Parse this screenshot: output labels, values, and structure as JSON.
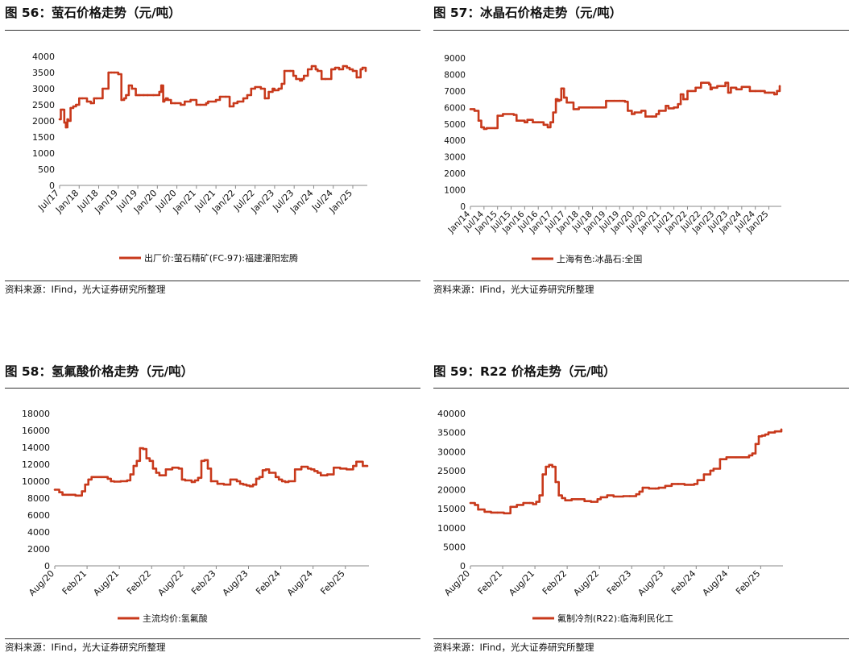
{
  "theme": {
    "line_color": "#c8391b",
    "axis_color": "#888888",
    "text_color": "#111111"
  },
  "chart_data": [
    {
      "type": "line",
      "title": "图 56：萤石价格走势（元/吨）",
      "source": "资料来源：IFind，光大证券研究所整理",
      "series_name": "出厂价:萤石精矿(FC-97):福建灌阳宏腾",
      "ylim": [
        0,
        4000
      ],
      "yticks": [
        0,
        500,
        1000,
        1500,
        2000,
        2500,
        3000,
        3500,
        4000
      ],
      "xrange": [
        2017.5,
        2025.33
      ],
      "xtick_labels": [
        "Jul/17",
        "Jan/18",
        "Jul/18",
        "Jan/19",
        "Jul/19",
        "Jan/20",
        "Jul/20",
        "Jan/21",
        "Jul/21",
        "Jan/22",
        "Jul/22",
        "Jan/23",
        "Jul/23",
        "Jan/24",
        "Jul/24",
        "Jan/25"
      ],
      "xtick_values": [
        2017.5,
        2018.0,
        2018.5,
        2019.0,
        2019.5,
        2020.0,
        2020.5,
        2021.0,
        2021.5,
        2022.0,
        2022.5,
        2023.0,
        2023.5,
        2024.0,
        2024.5,
        2025.0
      ],
      "x": [
        2017.5,
        2017.53,
        2017.58,
        2017.62,
        2017.66,
        2017.7,
        2017.72,
        2017.78,
        2017.85,
        2017.92,
        2018.0,
        2018.08,
        2018.2,
        2018.3,
        2018.38,
        2018.45,
        2018.6,
        2018.75,
        2018.82,
        2018.9,
        2019.0,
        2019.08,
        2019.15,
        2019.2,
        2019.27,
        2019.35,
        2019.45,
        2019.5,
        2019.55,
        2019.65,
        2019.75,
        2019.9,
        2020.05,
        2020.1,
        2020.15,
        2020.18,
        2020.22,
        2020.27,
        2020.35,
        2020.45,
        2020.6,
        2020.7,
        2020.85,
        2021.0,
        2021.1,
        2021.25,
        2021.3,
        2021.5,
        2021.6,
        2021.75,
        2021.85,
        2021.95,
        2022.05,
        2022.1,
        2022.2,
        2022.25,
        2022.3,
        2022.4,
        2022.5,
        2022.65,
        2022.75,
        2022.85,
        2022.95,
        2023.0,
        2023.1,
        2023.15,
        2023.18,
        2023.25,
        2023.4,
        2023.48,
        2023.55,
        2023.65,
        2023.7,
        2023.75,
        2023.85,
        2023.95,
        2024.05,
        2024.1,
        2024.2,
        2024.3,
        2024.45,
        2024.5,
        2024.55,
        2024.65,
        2024.75,
        2024.85,
        2024.92,
        2025.0,
        2025.1,
        2025.2,
        2025.25,
        2025.33
      ],
      "values": [
        2050,
        2350,
        2350,
        1950,
        1800,
        2050,
        2000,
        2400,
        2450,
        2500,
        2700,
        2700,
        2600,
        2550,
        2700,
        2700,
        3000,
        3500,
        3500,
        3500,
        3450,
        2650,
        2700,
        2800,
        3100,
        3000,
        2800,
        2800,
        2800,
        2800,
        2800,
        2800,
        2900,
        3100,
        2600,
        2650,
        2700,
        2650,
        2550,
        2550,
        2500,
        2600,
        2650,
        2500,
        2500,
        2550,
        2600,
        2650,
        2750,
        2750,
        2450,
        2550,
        2600,
        2600,
        2700,
        2700,
        2800,
        3000,
        3050,
        3000,
        2700,
        2900,
        3000,
        2950,
        3000,
        3000,
        3150,
        3550,
        3550,
        3400,
        3300,
        3250,
        3300,
        3400,
        3600,
        3700,
        3600,
        3550,
        3300,
        3300,
        3600,
        3600,
        3650,
        3600,
        3700,
        3650,
        3600,
        3550,
        3350,
        3600,
        3650,
        3550
      ],
      "axis_rule_top": true
    },
    {
      "type": "line",
      "title": "图 57：冰晶石价格走势（元/吨）",
      "source": "资料来源：IFind，光大证券研究所整理",
      "series_name": "上海有色:冰晶石:全国",
      "ylim": [
        0,
        9000
      ],
      "yticks": [
        0,
        1000,
        2000,
        3000,
        4000,
        5000,
        6000,
        7000,
        8000,
        9000
      ],
      "xrange": [
        2014.0,
        2025.4
      ],
      "xtick_labels": [
        "Jan/14",
        "Jul/14",
        "Jan/15",
        "Jul/15",
        "Jan/16",
        "Jul/16",
        "Jan/17",
        "Jul/17",
        "Jan/18",
        "Jul/18",
        "Jan/19",
        "Jul/19",
        "Jan/20",
        "Jul/20",
        "Jan/21",
        "Jul/21",
        "Jan/22",
        "Jul/22",
        "Jan/23",
        "Jul/23",
        "Jan/24",
        "Jul/24",
        "Jan/25"
      ],
      "xtick_values": [
        2014.0,
        2014.5,
        2015.0,
        2015.5,
        2016.0,
        2016.5,
        2017.0,
        2017.5,
        2018.0,
        2018.5,
        2019.0,
        2019.5,
        2020.0,
        2020.5,
        2021.0,
        2021.5,
        2022.0,
        2022.5,
        2023.0,
        2023.5,
        2024.0,
        2024.5,
        2025.0
      ],
      "x": [
        2014.0,
        2014.15,
        2014.3,
        2014.4,
        2014.5,
        2014.6,
        2014.9,
        2015.0,
        2015.2,
        2015.6,
        2015.7,
        2016.0,
        2016.1,
        2016.3,
        2016.5,
        2016.7,
        2016.85,
        2016.95,
        2017.05,
        2017.15,
        2017.22,
        2017.28,
        2017.35,
        2017.45,
        2017.55,
        2017.8,
        2018.0,
        2018.5,
        2018.9,
        2019.0,
        2019.3,
        2019.5,
        2019.6,
        2019.7,
        2019.8,
        2019.95,
        2020.05,
        2020.3,
        2020.45,
        2020.7,
        2020.85,
        2020.95,
        2021.2,
        2021.3,
        2021.5,
        2021.65,
        2021.75,
        2021.85,
        2022.0,
        2022.3,
        2022.5,
        2022.6,
        2022.8,
        2022.85,
        2022.9,
        2023.1,
        2023.4,
        2023.5,
        2023.6,
        2023.8,
        2024.0,
        2024.3,
        2024.5,
        2024.7,
        2024.85,
        2025.0,
        2025.2,
        2025.3,
        2025.4
      ],
      "values": [
        5900,
        5800,
        5200,
        4800,
        4700,
        4750,
        4750,
        5500,
        5600,
        5550,
        5200,
        5100,
        5250,
        5100,
        5100,
        4950,
        4800,
        5100,
        5700,
        6500,
        6400,
        6450,
        7150,
        6600,
        6300,
        5900,
        6000,
        6000,
        6000,
        6400,
        6400,
        6400,
        6400,
        6350,
        5800,
        5600,
        5700,
        5800,
        5450,
        5450,
        5600,
        5800,
        6100,
        5950,
        6000,
        6200,
        6800,
        6500,
        7000,
        7200,
        7500,
        7500,
        7400,
        7100,
        7200,
        7300,
        7500,
        6900,
        7200,
        7100,
        7250,
        7000,
        7000,
        7000,
        6900,
        6900,
        6800,
        7000,
        7300
      ],
      "axis_rule_top": false
    },
    {
      "type": "line",
      "title": "图 58：氢氟酸价格走势（元/吨）",
      "source": "资料来源：IFind，光大证券研究所整理",
      "series_name": "主流均价:氢氟酸",
      "ylim": [
        0,
        18000
      ],
      "yticks": [
        0,
        2000,
        4000,
        6000,
        8000,
        10000,
        12000,
        14000,
        16000,
        18000
      ],
      "xrange": [
        2020.58,
        2025.42
      ],
      "xtick_labels": [
        "Aug/20",
        "Feb/21",
        "Aug/21",
        "Feb/22",
        "Aug/22",
        "Feb/23",
        "Aug/23",
        "Feb/24",
        "Aug/24",
        "Feb/25"
      ],
      "xtick_values": [
        2020.58,
        2021.08,
        2021.58,
        2022.08,
        2022.58,
        2023.08,
        2023.58,
        2024.08,
        2024.58,
        2025.08
      ],
      "x": [
        2020.58,
        2020.65,
        2020.7,
        2020.8,
        2020.9,
        2020.95,
        2021.0,
        2021.05,
        2021.1,
        2021.15,
        2021.2,
        2021.3,
        2021.4,
        2021.45,
        2021.5,
        2021.6,
        2021.7,
        2021.75,
        2021.8,
        2021.85,
        2021.9,
        2021.95,
        2022.0,
        2022.05,
        2022.1,
        2022.15,
        2022.2,
        2022.3,
        2022.4,
        2022.45,
        2022.5,
        2022.55,
        2022.6,
        2022.7,
        2022.75,
        2022.8,
        2022.85,
        2022.9,
        2022.95,
        2023.0,
        2023.1,
        2023.2,
        2023.3,
        2023.4,
        2023.45,
        2023.5,
        2023.55,
        2023.6,
        2023.65,
        2023.7,
        2023.75,
        2023.8,
        2023.85,
        2023.9,
        2024.0,
        2024.05,
        2024.1,
        2024.15,
        2024.2,
        2024.3,
        2024.4,
        2024.5,
        2024.55,
        2024.6,
        2024.65,
        2024.7,
        2024.8,
        2024.9,
        2025.0,
        2025.1,
        2025.15,
        2025.2,
        2025.25,
        2025.3,
        2025.35,
        2025.42
      ],
      "values": [
        9000,
        8700,
        8400,
        8400,
        8300,
        8300,
        8800,
        9600,
        10200,
        10500,
        10500,
        10500,
        10300,
        10000,
        9950,
        10000,
        10100,
        10800,
        11800,
        12400,
        13900,
        13800,
        12700,
        12400,
        11500,
        11000,
        10700,
        11400,
        11600,
        11600,
        11500,
        10200,
        10100,
        9900,
        10100,
        10400,
        12400,
        12500,
        11500,
        10000,
        9700,
        9600,
        10200,
        10000,
        9700,
        9600,
        9500,
        9400,
        9600,
        10300,
        10500,
        11300,
        11400,
        11000,
        10500,
        10200,
        10000,
        9900,
        10000,
        11400,
        11700,
        11500,
        11400,
        11200,
        11000,
        10700,
        10800,
        11600,
        11500,
        11400,
        11400,
        11800,
        12300,
        12300,
        11800,
        11800
      ],
      "axis_rule_top": false
    },
    {
      "type": "line",
      "title": "图 59：R22 价格走势（元/吨）",
      "source": "资料来源：IFind，光大证券研究所整理",
      "series_name": "氟制冷剂(R22):临海利民化工",
      "ylim": [
        0,
        40000
      ],
      "yticks": [
        0,
        5000,
        10000,
        15000,
        20000,
        25000,
        30000,
        35000,
        40000
      ],
      "xrange": [
        2020.58,
        2025.4
      ],
      "xtick_labels": [
        "Aug/20",
        "Feb/21",
        "Aug/21",
        "Feb/22",
        "Aug/22",
        "Feb/23",
        "Aug/23",
        "Feb/24",
        "Aug/24",
        "Feb/25"
      ],
      "xtick_values": [
        2020.58,
        2021.08,
        2021.58,
        2022.08,
        2022.58,
        2023.08,
        2023.58,
        2024.08,
        2024.58,
        2025.08
      ],
      "x": [
        2020.58,
        2020.65,
        2020.7,
        2020.8,
        2020.9,
        2021.0,
        2021.1,
        2021.2,
        2021.3,
        2021.4,
        2021.5,
        2021.55,
        2021.6,
        2021.65,
        2021.7,
        2021.75,
        2021.8,
        2021.85,
        2021.9,
        2021.95,
        2022.0,
        2022.05,
        2022.15,
        2022.25,
        2022.35,
        2022.45,
        2022.55,
        2022.6,
        2022.7,
        2022.8,
        2022.95,
        2023.05,
        2023.15,
        2023.2,
        2023.25,
        2023.35,
        2023.45,
        2023.5,
        2023.6,
        2023.7,
        2023.8,
        2023.9,
        2024.0,
        2024.05,
        2024.1,
        2024.2,
        2024.3,
        2024.35,
        2024.45,
        2024.55,
        2024.7,
        2024.8,
        2024.9,
        2024.95,
        2025.0,
        2025.05,
        2025.1,
        2025.15,
        2025.2,
        2025.3,
        2025.4
      ],
      "values": [
        16500,
        16000,
        14800,
        14200,
        14000,
        14000,
        13800,
        15500,
        16000,
        16500,
        16500,
        16200,
        16800,
        18500,
        24000,
        26000,
        26500,
        26000,
        22000,
        18500,
        17800,
        17200,
        17500,
        17500,
        17000,
        16800,
        17500,
        18000,
        18500,
        18200,
        18300,
        18300,
        18800,
        19500,
        20500,
        20300,
        20300,
        20500,
        21000,
        21500,
        21500,
        21300,
        21300,
        21500,
        22500,
        24000,
        25000,
        25500,
        28000,
        28500,
        28500,
        28500,
        29000,
        29500,
        32000,
        34000,
        34200,
        34500,
        35000,
        35300,
        35800
      ],
      "axis_rule_top": false
    }
  ]
}
